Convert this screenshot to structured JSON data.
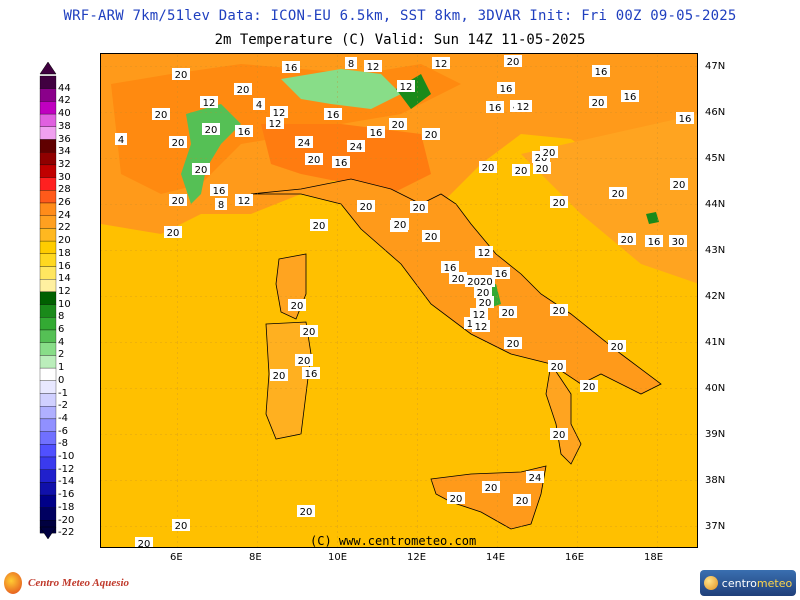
{
  "header": {
    "title_line1": "WRF-ARW 7km/51lev   Data: ICON-EU 6.5km, SST 8km, 3DVAR   Init: Fri 00Z 09-05-2025",
    "title_line2": "2m Temperature (C)  Valid: Sun 14Z 11-05-2025"
  },
  "legend": {
    "unit": "C",
    "levels": [
      "44",
      "42",
      "40",
      "38",
      "36",
      "34",
      "32",
      "30",
      "28",
      "26",
      "24",
      "22",
      "20",
      "18",
      "16",
      "14",
      "12",
      "10",
      "8",
      "6",
      "4",
      "2",
      "1",
      "0",
      "-1",
      "-2",
      "-4",
      "-6",
      "-8",
      "-10",
      "-12",
      "-14",
      "-16",
      "-18",
      "-20",
      "-22"
    ],
    "colors": [
      "#400040",
      "#8a008a",
      "#c000c0",
      "#e060e0",
      "#f0a0f0",
      "#600000",
      "#900000",
      "#c00000",
      "#ff2020",
      "#ff5a1a",
      "#ff8c1a",
      "#ffa020",
      "#ffb820",
      "#ffcc00",
      "#ffd820",
      "#ffe660",
      "#fff0a0",
      "#006000",
      "#1a8a1a",
      "#33aa33",
      "#55c055",
      "#88dd88",
      "#bbeebb",
      "#ffffff",
      "#e8e8ff",
      "#d0d0ff",
      "#b0b0ff",
      "#9090ff",
      "#7070ff",
      "#5050ff",
      "#3a3aee",
      "#2020cc",
      "#1010aa",
      "#000088",
      "#000060",
      "#000040"
    ]
  },
  "axes": {
    "latitudes": [
      "47N",
      "46N",
      "45N",
      "44N",
      "43N",
      "42N",
      "41N",
      "40N",
      "39N",
      "38N",
      "37N"
    ],
    "longitudes": [
      "6E",
      "8E",
      "10E",
      "12E",
      "14E",
      "16E",
      "18E"
    ]
  },
  "contour_labels": [
    "20",
    "16",
    "12",
    "8",
    "12",
    "4",
    "12",
    "12",
    "20",
    "16",
    "20",
    "20",
    "16",
    "12",
    "4",
    "20",
    "12",
    "16",
    "4",
    "16",
    "16",
    "12",
    "20",
    "20",
    "24",
    "16",
    "16",
    "20",
    "20",
    "20",
    "24",
    "20",
    "20",
    "20",
    "12",
    "20",
    "20",
    "20",
    "16",
    "8",
    "16",
    "12",
    "20",
    "20",
    "20",
    "20",
    "2020",
    "16",
    "20",
    "16",
    "20",
    "12",
    "20",
    "12",
    "20",
    "20",
    "20",
    "16",
    "16",
    "20",
    "20",
    "20",
    "16",
    "20",
    "20",
    "20",
    "20",
    "20",
    "20",
    "30",
    "20",
    "20",
    "20",
    "16",
    "20",
    "20",
    "20",
    "20",
    "24",
    "20",
    "20",
    "20",
    "20",
    "20",
    "20"
  ],
  "copyright": "(C) www.centrometeo.com",
  "footer": {
    "left_brand": "Centro Meteo Aquesio",
    "right_brand_a": "centro",
    "right_brand_b": "meteo"
  },
  "colors": {
    "background_warm": "#ffc000",
    "mid_orange": "#ff9a1a",
    "hot_orange": "#ff7c10",
    "cool_green": "#33aa33",
    "title_blue": "#1f3fbf"
  }
}
